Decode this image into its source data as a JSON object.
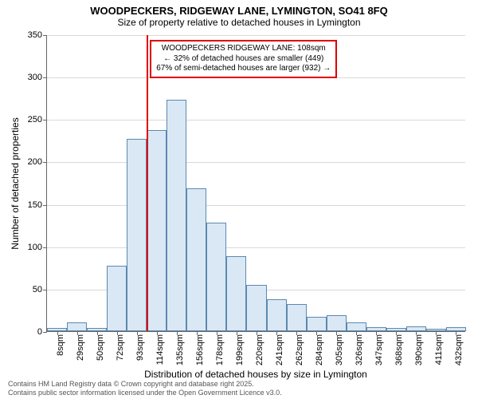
{
  "title": "WOODPECKERS, RIDGEWAY LANE, LYMINGTON, SO41 8FQ",
  "subtitle": "Size of property relative to detached houses in Lymington",
  "chart": {
    "type": "histogram",
    "ylabel": "Number of detached properties",
    "xlabel": "Distribution of detached houses by size in Lymington",
    "ylim": [
      0,
      350
    ],
    "ytick_step": 50,
    "yticks": [
      0,
      50,
      100,
      150,
      200,
      250,
      300,
      350
    ],
    "xtick_labels": [
      "8sqm",
      "29sqm",
      "50sqm",
      "72sqm",
      "93sqm",
      "114sqm",
      "135sqm",
      "156sqm",
      "178sqm",
      "199sqm",
      "220sqm",
      "241sqm",
      "262sqm",
      "284sqm",
      "305sqm",
      "326sqm",
      "347sqm",
      "368sqm",
      "390sqm",
      "411sqm",
      "432sqm"
    ],
    "bar_fill": "#dae8f5",
    "bar_stroke": "#5b89b0",
    "grid_color": "#d9d9d9",
    "axis_color": "#666666",
    "background_color": "#ffffff",
    "bars": [
      {
        "label": "8sqm",
        "value": 4
      },
      {
        "label": "29sqm",
        "value": 10
      },
      {
        "label": "50sqm",
        "value": 4
      },
      {
        "label": "72sqm",
        "value": 77
      },
      {
        "label": "93sqm",
        "value": 227
      },
      {
        "label": "114sqm",
        "value": 237
      },
      {
        "label": "135sqm",
        "value": 273
      },
      {
        "label": "156sqm",
        "value": 168
      },
      {
        "label": "178sqm",
        "value": 128
      },
      {
        "label": "199sqm",
        "value": 88
      },
      {
        "label": "220sqm",
        "value": 55
      },
      {
        "label": "241sqm",
        "value": 38
      },
      {
        "label": "262sqm",
        "value": 32
      },
      {
        "label": "284sqm",
        "value": 17
      },
      {
        "label": "305sqm",
        "value": 19
      },
      {
        "label": "326sqm",
        "value": 10
      },
      {
        "label": "347sqm",
        "value": 5
      },
      {
        "label": "368sqm",
        "value": 4
      },
      {
        "label": "390sqm",
        "value": 6
      },
      {
        "label": "411sqm",
        "value": 3
      },
      {
        "label": "432sqm",
        "value": 5
      }
    ],
    "marker": {
      "color": "#e10000",
      "at_label": "114sqm"
    },
    "annotation": {
      "border_color": "#e10000",
      "bg_color": "#ffffff",
      "fontsize": 10,
      "lines": [
        "WOODPECKERS RIDGEWAY LANE: 108sqm",
        "← 32% of detached houses are smaller (449)",
        "67% of semi-detached houses are larger (932) →"
      ]
    }
  },
  "footer": {
    "line1": "Contains HM Land Registry data © Crown copyright and database right 2025.",
    "line2": "Contains public sector information licensed under the Open Government Licence v3.0."
  }
}
